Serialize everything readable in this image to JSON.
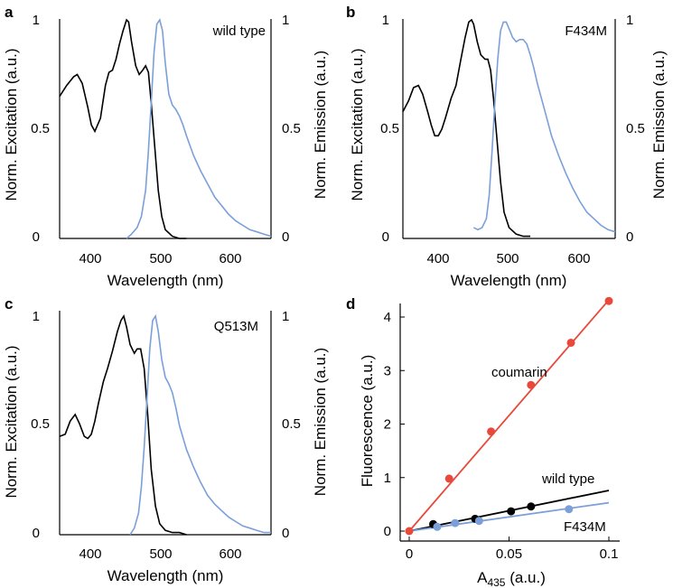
{
  "colors": {
    "excitation": "#000000",
    "emission": "#7b9fd9",
    "coumarin": "#e8493a",
    "wild_type": "#000000",
    "f434m": "#7b9fd9"
  },
  "chart_data": [
    {
      "type": "line",
      "panel_label": "a",
      "annotation": "wild type",
      "xlabel": "Wavelength (nm)",
      "ylabel_left": "Norm. Excitation (a.u.)",
      "ylabel_right": "Norm. Emission (a.u.)",
      "xlim": [
        350,
        650
      ],
      "ylim": [
        0,
        1
      ],
      "xticks": [
        "400",
        "500",
        "600"
      ],
      "yticks": [
        "0",
        "0.5",
        "1"
      ],
      "series": [
        {
          "name": "excitation",
          "x": [
            350,
            360,
            370,
            375,
            382,
            390,
            395,
            400,
            408,
            415,
            420,
            425,
            430,
            435,
            440,
            445,
            448,
            452,
            458,
            463,
            468,
            472,
            476,
            480,
            485,
            490,
            495,
            500,
            510,
            520,
            530
          ],
          "y": [
            0.65,
            0.7,
            0.74,
            0.75,
            0.71,
            0.6,
            0.52,
            0.49,
            0.55,
            0.7,
            0.76,
            0.77,
            0.82,
            0.89,
            0.95,
            1.0,
            0.99,
            0.9,
            0.79,
            0.75,
            0.77,
            0.79,
            0.76,
            0.62,
            0.42,
            0.22,
            0.1,
            0.04,
            0.01,
            0.0,
            0.0
          ]
        },
        {
          "name": "emission",
          "x": [
            445,
            452,
            460,
            466,
            472,
            476,
            480,
            484,
            488,
            492,
            496,
            500,
            505,
            510,
            515,
            520,
            525,
            530,
            540,
            550,
            560,
            570,
            580,
            590,
            600,
            610,
            620,
            630,
            640,
            650
          ],
          "y": [
            0.0,
            0.02,
            0.05,
            0.1,
            0.22,
            0.4,
            0.62,
            0.85,
            0.98,
            1.0,
            0.95,
            0.8,
            0.66,
            0.61,
            0.59,
            0.56,
            0.52,
            0.47,
            0.38,
            0.31,
            0.25,
            0.19,
            0.15,
            0.11,
            0.08,
            0.06,
            0.04,
            0.03,
            0.02,
            0.01
          ]
        }
      ]
    },
    {
      "type": "line",
      "panel_label": "b",
      "annotation": "F434M",
      "xlabel": "Wavelength (nm)",
      "ylabel_left": "Norm. Excitation (a.u.)",
      "ylabel_right": "Norm. Emission (a.u.)",
      "xlim": [
        350,
        650
      ],
      "ylim": [
        0,
        1
      ],
      "xticks": [
        "400",
        "500",
        "600"
      ],
      "yticks": [
        "0",
        "0.5",
        "1"
      ],
      "series": [
        {
          "name": "excitation",
          "x": [
            350,
            358,
            365,
            372,
            378,
            385,
            390,
            395,
            400,
            405,
            410,
            418,
            425,
            432,
            438,
            443,
            447,
            450,
            455,
            460,
            466,
            470,
            474,
            478,
            483,
            488,
            493,
            500,
            510,
            520,
            530
          ],
          "y": [
            0.58,
            0.63,
            0.69,
            0.7,
            0.66,
            0.58,
            0.52,
            0.47,
            0.47,
            0.5,
            0.55,
            0.64,
            0.7,
            0.82,
            0.92,
            0.99,
            1.0,
            0.98,
            0.9,
            0.84,
            0.82,
            0.82,
            0.77,
            0.64,
            0.45,
            0.26,
            0.12,
            0.05,
            0.02,
            0.01,
            0.01
          ]
        },
        {
          "name": "emission",
          "x": [
            450,
            456,
            462,
            468,
            472,
            476,
            480,
            484,
            488,
            492,
            496,
            500,
            505,
            510,
            515,
            520,
            525,
            530,
            535,
            540,
            550,
            560,
            570,
            580,
            590,
            600,
            610,
            620,
            630,
            640,
            650
          ],
          "y": [
            0.05,
            0.04,
            0.05,
            0.09,
            0.2,
            0.4,
            0.62,
            0.82,
            0.95,
            0.99,
            0.99,
            0.96,
            0.92,
            0.9,
            0.91,
            0.91,
            0.89,
            0.84,
            0.78,
            0.71,
            0.59,
            0.47,
            0.38,
            0.3,
            0.23,
            0.17,
            0.12,
            0.09,
            0.06,
            0.04,
            0.03
          ]
        }
      ]
    },
    {
      "type": "line",
      "panel_label": "c",
      "annotation": "Q513M",
      "xlabel": "Wavelength (nm)",
      "ylabel_left": "Norm. Excitation (a.u.)",
      "ylabel_right": "Norm. Emission (a.u.)",
      "xlim": [
        350,
        650
      ],
      "ylim": [
        0,
        1
      ],
      "xticks": [
        "400",
        "500",
        "600"
      ],
      "yticks": [
        "0",
        "0.5",
        "1"
      ],
      "series": [
        {
          "name": "excitation",
          "x": [
            350,
            358,
            365,
            372,
            378,
            385,
            390,
            395,
            400,
            405,
            412,
            418,
            425,
            432,
            437,
            441,
            445,
            450,
            456,
            460,
            465,
            470,
            475,
            480,
            486,
            492,
            500,
            510,
            520,
            530
          ],
          "y": [
            0.45,
            0.46,
            0.52,
            0.55,
            0.51,
            0.45,
            0.44,
            0.46,
            0.52,
            0.6,
            0.7,
            0.76,
            0.84,
            0.93,
            0.98,
            1.0,
            0.95,
            0.87,
            0.83,
            0.85,
            0.85,
            0.76,
            0.55,
            0.3,
            0.13,
            0.05,
            0.02,
            0.01,
            0.01,
            0.0
          ]
        },
        {
          "name": "emission",
          "x": [
            450,
            456,
            462,
            466,
            470,
            474,
            478,
            482,
            486,
            490,
            495,
            500,
            505,
            510,
            515,
            520,
            530,
            540,
            550,
            560,
            570,
            580,
            590,
            600,
            610,
            620,
            630,
            640,
            650
          ],
          "y": [
            0.0,
            0.03,
            0.1,
            0.22,
            0.4,
            0.62,
            0.85,
            0.98,
            1.0,
            0.93,
            0.8,
            0.72,
            0.69,
            0.65,
            0.58,
            0.5,
            0.39,
            0.31,
            0.24,
            0.18,
            0.14,
            0.11,
            0.08,
            0.06,
            0.04,
            0.03,
            0.02,
            0.01,
            0.01
          ]
        }
      ]
    },
    {
      "type": "scatter",
      "panel_label": "d",
      "xlabel_main": "A",
      "xlabel_sub": "435",
      "xlabel_tail": " (a.u.)",
      "ylabel": "Fluorescence (a.u.)",
      "xlim": [
        0,
        0.1
      ],
      "ylim": [
        0,
        4.4
      ],
      "xticks": [
        {
          "value": 0,
          "label": "0"
        },
        {
          "value": 0.05,
          "label": "0.05"
        },
        {
          "value": 0.1,
          "label": "0.1"
        }
      ],
      "yticks": [
        {
          "value": 0,
          "label": "0"
        },
        {
          "value": 1,
          "label": "1"
        },
        {
          "value": 2,
          "label": "2"
        },
        {
          "value": 3,
          "label": "3"
        },
        {
          "value": 4,
          "label": "4"
        }
      ],
      "series": [
        {
          "name": "coumarin",
          "label": "coumarin",
          "x": [
            0,
            0.02,
            0.041,
            0.061,
            0.081,
            0.1
          ],
          "y": [
            0,
            0.98,
            1.86,
            2.73,
            3.52,
            4.3
          ],
          "fit_slope": 43.2,
          "fit_x_end": 0.1
        },
        {
          "name": "wild_type",
          "label": "wild type",
          "x": [
            0.012,
            0.033,
            0.051,
            0.061
          ],
          "y": [
            0.13,
            0.23,
            0.37,
            0.46
          ],
          "fit_slope": 7.6,
          "fit_x_end": 0.1
        },
        {
          "name": "f434m",
          "label": "F434M",
          "x": [
            0.014,
            0.023,
            0.035,
            0.08
          ],
          "y": [
            0.08,
            0.15,
            0.19,
            0.41
          ],
          "fit_slope": 5.3,
          "fit_x_end": 0.1
        }
      ]
    }
  ]
}
